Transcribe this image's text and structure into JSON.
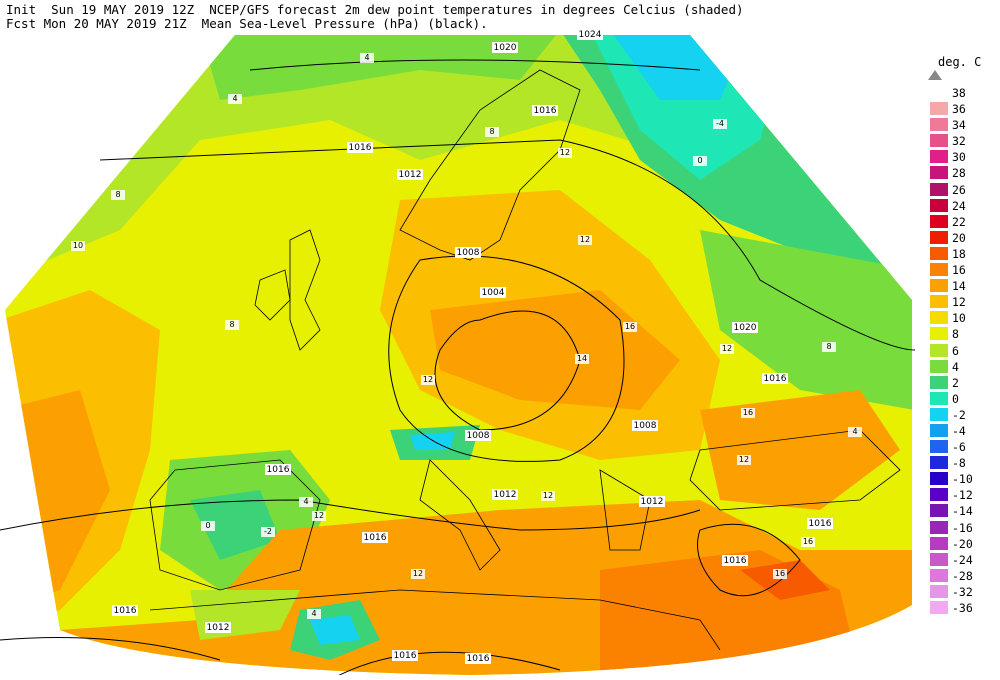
{
  "header": {
    "line1": "Init  Sun 19 MAY 2019 12Z  NCEP/GFS forecast 2m dew point temperatures in degrees Celcius (shaded)",
    "line2": "Fcst Mon 20 MAY 2019 21Z  Mean Sea-Level Pressure (hPa) (black)."
  },
  "legend": {
    "title": "deg. C",
    "entries": [
      {
        "label": "38",
        "color": "#9e9e9e"
      },
      {
        "label": "36",
        "color": "#f5a8a8"
      },
      {
        "label": "34",
        "color": "#f07898"
      },
      {
        "label": "32",
        "color": "#e8508c"
      },
      {
        "label": "30",
        "color": "#e01e8c"
      },
      {
        "label": "28",
        "color": "#c8147c"
      },
      {
        "label": "26",
        "color": "#b0106a"
      },
      {
        "label": "24",
        "color": "#c8003c"
      },
      {
        "label": "22",
        "color": "#e0001e"
      },
      {
        "label": "20",
        "color": "#f01e00"
      },
      {
        "label": "18",
        "color": "#f85a00"
      },
      {
        "label": "16",
        "color": "#fa8200"
      },
      {
        "label": "14",
        "color": "#fba000"
      },
      {
        "label": "12",
        "color": "#fcbe00"
      },
      {
        "label": "10",
        "color": "#f4dc00"
      },
      {
        "label": "8",
        "color": "#e6f000"
      },
      {
        "label": "6",
        "color": "#b4e628"
      },
      {
        "label": "4",
        "color": "#78dc3c"
      },
      {
        "label": "2",
        "color": "#3cd278"
      },
      {
        "label": "0",
        "color": "#1ee6b4"
      },
      {
        "label": "-2",
        "color": "#14d2f0"
      },
      {
        "label": "-4",
        "color": "#14a0f0"
      },
      {
        "label": "-6",
        "color": "#1e64f0"
      },
      {
        "label": "-8",
        "color": "#1e28dc"
      },
      {
        "label": "-10",
        "color": "#2800c8"
      },
      {
        "label": "-12",
        "color": "#5a00c8"
      },
      {
        "label": "-14",
        "color": "#7814b4"
      },
      {
        "label": "-16",
        "color": "#9628b4"
      },
      {
        "label": "-20",
        "color": "#b43cbe"
      },
      {
        "label": "-24",
        "color": "#c85ac8"
      },
      {
        "label": "-28",
        "color": "#dc78dc"
      },
      {
        "label": "-32",
        "color": "#e696e6"
      },
      {
        "label": "-36",
        "color": "#f0aaf0"
      }
    ]
  },
  "isobar_labels": [
    "1024",
    "1020",
    "1016",
    "1016",
    "1012",
    "1008",
    "1004",
    "1016",
    "1020",
    "1016",
    "1008",
    "1008",
    "1012",
    "1012",
    "1016",
    "1016",
    "1016",
    "1016",
    "1012",
    "1016",
    "1016"
  ],
  "temp_labels": [
    "4",
    "8",
    "12",
    "16",
    "0",
    "-4",
    "12",
    "8",
    "4",
    "10",
    "8",
    "12",
    "14",
    "16",
    "12",
    "12",
    "16",
    "12",
    "4",
    "0",
    "12",
    "16",
    "12",
    "4",
    "8",
    "-2",
    "4"
  ]
}
